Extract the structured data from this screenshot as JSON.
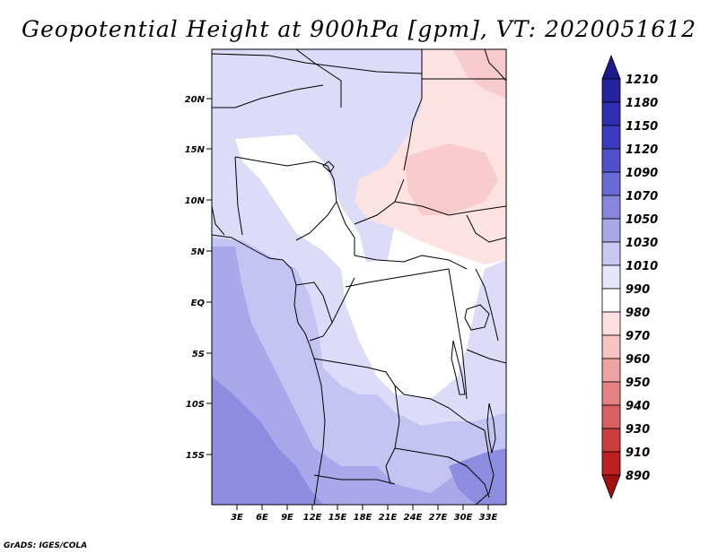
{
  "title": "Geopotential Height at 900hPa [gpm], VT: 2020051612",
  "footer": "GrADS: IGES/COLA",
  "map": {
    "lat_ticks": [
      "20N",
      "15N",
      "10N",
      "5N",
      "EQ",
      "5S",
      "10S",
      "15S"
    ],
    "lon_ticks": [
      "3E",
      "6E",
      "9E",
      "12E",
      "15E",
      "18E",
      "21E",
      "24E",
      "27E",
      "30E",
      "33E"
    ],
    "lon_range_deg": [
      0,
      35
    ],
    "lat_range_deg": [
      -20,
      24
    ]
  },
  "colorbar": {
    "levels": [
      "1210",
      "1180",
      "1150",
      "1120",
      "1090",
      "1070",
      "1050",
      "1030",
      "1010",
      "990",
      "980",
      "970",
      "960",
      "950",
      "940",
      "930",
      "910",
      "890"
    ],
    "colors": [
      "#1a1a8c",
      "#24249e",
      "#2e2eb0",
      "#3b3bc0",
      "#5050cc",
      "#6a6ad6",
      "#8686df",
      "#a8a8e8",
      "#c8c8f2",
      "#e6e6fa",
      "#ffffff",
      "#fce0e0",
      "#f6c2c2",
      "#eea2a2",
      "#e48282",
      "#d86060",
      "#cc3e3e",
      "#bc2020",
      "#a01010"
    ]
  },
  "field_colors": {
    "lightest_blue": "#dcdcf8",
    "light_blue": "#c4c4f2",
    "mid_blue": "#a8a8ea",
    "dark_blue": "#8c8ce0",
    "white": "#ffffff",
    "light_pink": "#fde2e2",
    "pink": "#f8cccc"
  }
}
